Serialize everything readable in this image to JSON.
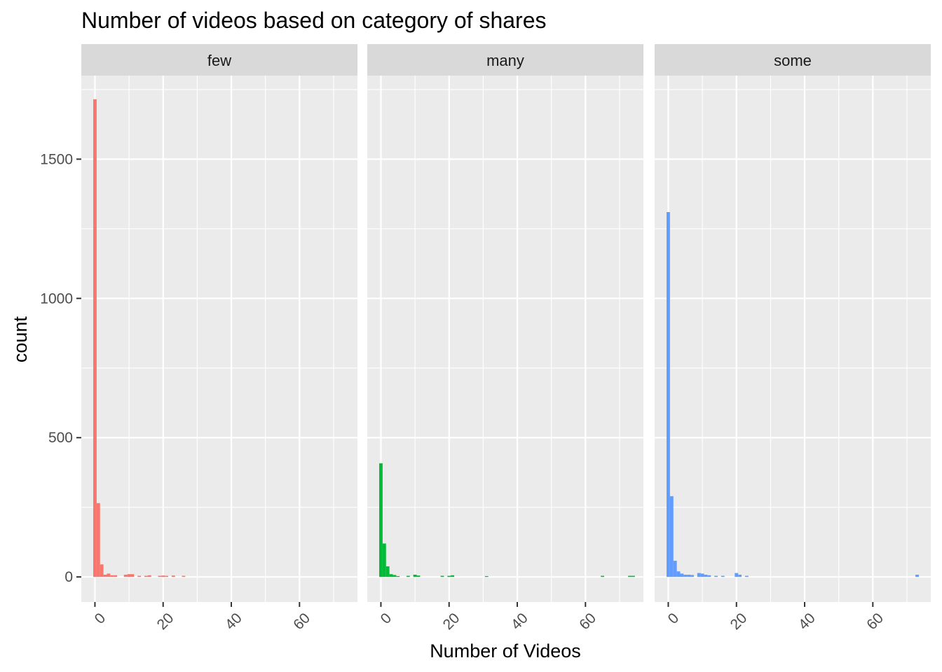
{
  "chart_data": {
    "type": "bar",
    "title": "Number of videos based on category of shares",
    "xlabel": "Number of Videos",
    "ylabel": "count",
    "xlim": [
      -4,
      77
    ],
    "ylim": [
      -90,
      1800
    ],
    "x_ticks": [
      0,
      20,
      40,
      60
    ],
    "x_tick_labels": [
      "0",
      "20",
      "40",
      "60"
    ],
    "y_ticks": [
      0,
      500,
      1000,
      1500
    ],
    "y_tick_labels": [
      "0",
      "500",
      "1000",
      "1500"
    ],
    "bin_width": 1,
    "grid": true,
    "legend": "none",
    "panels": [
      {
        "label": "few",
        "color": "#f8766d",
        "bins": [
          [
            0,
            1715
          ],
          [
            1,
            265
          ],
          [
            2,
            45
          ],
          [
            3,
            8
          ],
          [
            4,
            12
          ],
          [
            5,
            6
          ],
          [
            6,
            6
          ],
          [
            9,
            8
          ],
          [
            10,
            10
          ],
          [
            11,
            10
          ],
          [
            13,
            4
          ],
          [
            15,
            4
          ],
          [
            16,
            6
          ],
          [
            19,
            4
          ],
          [
            20,
            5
          ],
          [
            21,
            4
          ],
          [
            23,
            5
          ],
          [
            26,
            4
          ]
        ]
      },
      {
        "label": "many",
        "color": "#00ba38",
        "bins": [
          [
            0,
            408
          ],
          [
            1,
            120
          ],
          [
            2,
            38
          ],
          [
            3,
            10
          ],
          [
            4,
            7
          ],
          [
            5,
            3
          ],
          [
            8,
            4
          ],
          [
            10,
            8
          ],
          [
            11,
            5
          ],
          [
            18,
            4
          ],
          [
            20,
            4
          ],
          [
            21,
            6
          ],
          [
            31,
            3
          ],
          [
            65,
            4
          ],
          [
            73,
            4
          ],
          [
            74,
            4
          ]
        ]
      },
      {
        "label": "some",
        "color": "#619cff",
        "bins": [
          [
            0,
            1310
          ],
          [
            1,
            290
          ],
          [
            2,
            58
          ],
          [
            3,
            20
          ],
          [
            4,
            12
          ],
          [
            5,
            8
          ],
          [
            6,
            8
          ],
          [
            7,
            7
          ],
          [
            9,
            14
          ],
          [
            10,
            12
          ],
          [
            11,
            8
          ],
          [
            12,
            6
          ],
          [
            14,
            4
          ],
          [
            16,
            4
          ],
          [
            20,
            14
          ],
          [
            21,
            8
          ],
          [
            23,
            4
          ],
          [
            73,
            8
          ]
        ]
      }
    ]
  }
}
